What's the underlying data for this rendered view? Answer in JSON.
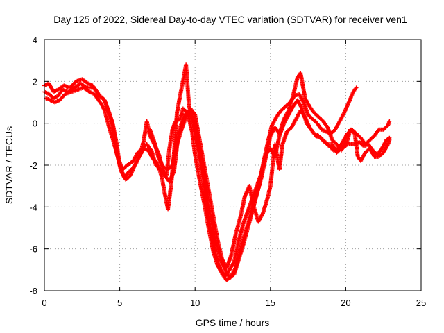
{
  "chart_data": {
    "type": "scatter",
    "title": "Day 125 of 2022, Sidereal Day-to-day VTEC variation (SDTVAR) for receiver ven1",
    "xlabel": "GPS time / hours",
    "ylabel": "SDTVAR / TECUs",
    "xlim": [
      0,
      25
    ],
    "ylim": [
      -8,
      4
    ],
    "xticks": [
      "0",
      "5",
      "10",
      "15",
      "20",
      "25"
    ],
    "yticks": [
      "-8",
      "-6",
      "-4",
      "-2",
      "0",
      "2",
      "4"
    ],
    "grid": true,
    "marker": "+",
    "color": "#ff0000",
    "series": [
      {
        "points": [
          [
            0.0,
            1.5
          ],
          [
            0.3,
            1.4
          ],
          [
            0.6,
            1.2
          ],
          [
            0.9,
            1.3
          ],
          [
            1.2,
            1.6
          ],
          [
            1.6,
            1.5
          ],
          [
            2.0,
            1.7
          ],
          [
            2.4,
            1.9
          ],
          [
            2.8,
            1.7
          ],
          [
            3.2,
            1.7
          ],
          [
            3.4,
            1.6
          ],
          [
            3.6,
            1.3
          ],
          [
            3.9,
            1.2
          ],
          [
            4.1,
            0.9
          ],
          [
            4.3,
            0.4
          ],
          [
            4.5,
            0.1
          ],
          [
            4.8,
            -1.0
          ],
          [
            5.0,
            -2.0
          ],
          [
            5.3,
            -2.6
          ],
          [
            5.5,
            -2.4
          ],
          [
            5.8,
            -2.2
          ],
          [
            6.1,
            -1.9
          ],
          [
            6.4,
            -1.4
          ],
          [
            6.6,
            -0.8
          ],
          [
            6.8,
            0.1
          ],
          [
            7.0,
            -0.6
          ],
          [
            7.3,
            -1.0
          ],
          [
            7.6,
            -1.5
          ],
          [
            7.9,
            -2.3
          ],
          [
            8.1,
            -2.5
          ],
          [
            8.3,
            -1.2
          ],
          [
            8.5,
            -0.3
          ],
          [
            8.7,
            0.1
          ],
          [
            9.0,
            0.2
          ],
          [
            9.2,
            0.7
          ],
          [
            9.5,
            0.5
          ],
          [
            9.8,
            -0.4
          ],
          [
            10.0,
            -1.5
          ],
          [
            10.3,
            -2.7
          ],
          [
            10.6,
            -3.8
          ],
          [
            10.9,
            -5.0
          ],
          [
            11.2,
            -6.1
          ],
          [
            11.5,
            -6.8
          ],
          [
            11.8,
            -7.2
          ],
          [
            12.1,
            -7.5
          ],
          [
            12.4,
            -7.3
          ],
          [
            12.7,
            -6.9
          ],
          [
            13.0,
            -6.0
          ],
          [
            13.3,
            -5.3
          ],
          [
            13.6,
            -4.6
          ],
          [
            13.9,
            -3.8
          ],
          [
            14.2,
            -3.1
          ],
          [
            14.5,
            -2.0
          ],
          [
            14.8,
            -1.0
          ],
          [
            15.1,
            -0.1
          ],
          [
            15.4,
            0.3
          ],
          [
            15.7,
            0.6
          ],
          [
            16.0,
            0.8
          ],
          [
            16.3,
            1.0
          ],
          [
            16.6,
            1.3
          ],
          [
            16.9,
            1.4
          ],
          [
            17.2,
            1.0
          ],
          [
            17.5,
            0.4
          ],
          [
            17.8,
            0.2
          ],
          [
            18.1,
            0.0
          ],
          [
            18.4,
            -0.3
          ],
          [
            18.7,
            -0.4
          ],
          [
            19.0,
            -0.5
          ],
          [
            19.3,
            -0.3
          ],
          [
            19.6,
            0.1
          ],
          [
            19.9,
            0.5
          ],
          [
            20.2,
            1.0
          ],
          [
            20.5,
            1.5
          ],
          [
            20.7,
            1.7
          ]
        ]
      },
      {
        "points": [
          [
            0.0,
            1.8
          ],
          [
            0.3,
            1.9
          ],
          [
            0.6,
            1.5
          ],
          [
            0.9,
            1.6
          ],
          [
            1.3,
            1.8
          ],
          [
            1.7,
            1.7
          ],
          [
            2.1,
            2.0
          ],
          [
            2.5,
            2.1
          ],
          [
            2.9,
            1.9
          ],
          [
            3.2,
            1.8
          ],
          [
            3.5,
            1.5
          ],
          [
            3.7,
            1.3
          ],
          [
            4.0,
            1.1
          ],
          [
            4.2,
            0.7
          ],
          [
            4.4,
            0.3
          ],
          [
            4.6,
            -0.4
          ],
          [
            4.8,
            -1.4
          ],
          [
            5.1,
            -2.3
          ],
          [
            5.4,
            -2.7
          ],
          [
            5.7,
            -2.5
          ],
          [
            6.0,
            -2.0
          ],
          [
            6.3,
            -1.6
          ],
          [
            6.6,
            -1.2
          ],
          [
            6.9,
            -1.3
          ],
          [
            7.2,
            -1.7
          ],
          [
            7.5,
            -1.9
          ],
          [
            7.8,
            -2.6
          ],
          [
            8.0,
            -3.4
          ],
          [
            8.2,
            -4.1
          ],
          [
            8.4,
            -3.0
          ],
          [
            8.6,
            -1.5
          ],
          [
            8.8,
            0.5
          ],
          [
            9.0,
            1.3
          ],
          [
            9.2,
            2.0
          ],
          [
            9.4,
            2.8
          ],
          [
            9.6,
            0.8
          ],
          [
            9.9,
            0.2
          ],
          [
            10.2,
            -1.0
          ],
          [
            10.5,
            -2.2
          ],
          [
            10.8,
            -3.6
          ],
          [
            11.1,
            -4.7
          ],
          [
            11.4,
            -5.7
          ],
          [
            11.7,
            -6.5
          ],
          [
            12.0,
            -7.0
          ],
          [
            12.3,
            -7.4
          ],
          [
            12.6,
            -7.2
          ],
          [
            12.9,
            -6.5
          ],
          [
            13.2,
            -5.8
          ],
          [
            13.5,
            -5.0
          ],
          [
            13.8,
            -4.2
          ],
          [
            14.1,
            -3.4
          ],
          [
            14.4,
            -2.6
          ],
          [
            14.7,
            -1.6
          ],
          [
            15.0,
            -0.6
          ],
          [
            15.3,
            -0.2
          ],
          [
            15.6,
            -0.5
          ],
          [
            15.9,
            0.2
          ],
          [
            16.2,
            0.6
          ],
          [
            16.5,
            1.3
          ],
          [
            16.8,
            2.2
          ],
          [
            17.0,
            2.4
          ],
          [
            17.3,
            1.2
          ],
          [
            17.6,
            0.8
          ],
          [
            17.9,
            0.5
          ],
          [
            18.2,
            0.3
          ],
          [
            18.5,
            0.1
          ],
          [
            18.8,
            -0.2
          ],
          [
            19.1,
            -0.8
          ],
          [
            19.4,
            -1.0
          ],
          [
            19.7,
            -1.3
          ],
          [
            20.0,
            -0.9
          ],
          [
            20.3,
            -1.0
          ],
          [
            20.6,
            -1.0
          ],
          [
            20.9,
            -0.9
          ],
          [
            21.2,
            -1.1
          ],
          [
            21.5,
            -1.0
          ],
          [
            21.8,
            -1.3
          ],
          [
            22.1,
            -1.5
          ],
          [
            22.4,
            -1.2
          ],
          [
            22.7,
            -0.8
          ],
          [
            22.9,
            -0.7
          ]
        ]
      },
      {
        "points": [
          [
            0.1,
            1.2
          ],
          [
            0.4,
            1.1
          ],
          [
            0.7,
            1.0
          ],
          [
            1.0,
            1.1
          ],
          [
            1.4,
            1.4
          ],
          [
            1.8,
            1.5
          ],
          [
            2.2,
            1.6
          ],
          [
            2.6,
            1.7
          ],
          [
            3.0,
            1.5
          ],
          [
            3.3,
            1.4
          ],
          [
            3.8,
            0.9
          ],
          [
            4.0,
            0.6
          ],
          [
            4.3,
            -0.2
          ],
          [
            4.6,
            -0.9
          ],
          [
            4.9,
            -1.7
          ],
          [
            5.2,
            -2.2
          ],
          [
            5.5,
            -2.0
          ],
          [
            5.9,
            -1.8
          ],
          [
            6.2,
            -1.4
          ],
          [
            6.5,
            -1.2
          ],
          [
            6.8,
            -1.0
          ],
          [
            7.1,
            -1.3
          ],
          [
            7.4,
            -2.0
          ],
          [
            7.7,
            -2.2
          ],
          [
            8.0,
            -2.5
          ],
          [
            8.3,
            -2.8
          ],
          [
            8.6,
            -2.3
          ],
          [
            8.9,
            -0.5
          ],
          [
            9.1,
            0.0
          ],
          [
            9.3,
            0.4
          ],
          [
            9.6,
            0.6
          ],
          [
            9.9,
            0.0
          ],
          [
            10.2,
            -1.2
          ],
          [
            10.5,
            -2.5
          ],
          [
            10.8,
            -4.0
          ],
          [
            11.1,
            -5.3
          ],
          [
            11.4,
            -6.3
          ],
          [
            11.7,
            -7.0
          ],
          [
            12.0,
            -7.3
          ],
          [
            12.3,
            -7.0
          ],
          [
            12.6,
            -6.6
          ],
          [
            12.9,
            -5.6
          ],
          [
            13.2,
            -4.8
          ],
          [
            13.5,
            -4.2
          ],
          [
            13.8,
            -3.6
          ],
          [
            14.1,
            -3.0
          ],
          [
            14.4,
            -2.4
          ],
          [
            14.7,
            -1.5
          ],
          [
            15.0,
            -1.2
          ],
          [
            15.3,
            -1.6
          ],
          [
            15.6,
            -0.6
          ],
          [
            15.9,
            0.0
          ],
          [
            16.2,
            0.4
          ],
          [
            16.5,
            0.8
          ],
          [
            16.8,
            1.1
          ],
          [
            17.1,
            0.7
          ],
          [
            17.4,
            0.0
          ],
          [
            17.7,
            -0.3
          ],
          [
            18.0,
            -0.6
          ],
          [
            18.3,
            -0.7
          ],
          [
            18.6,
            -0.9
          ],
          [
            18.9,
            -1.1
          ],
          [
            19.2,
            -1.3
          ],
          [
            19.5,
            -1.2
          ],
          [
            19.8,
            -0.9
          ],
          [
            20.1,
            -0.5
          ],
          [
            20.4,
            -0.3
          ],
          [
            20.7,
            -0.5
          ],
          [
            21.0,
            -0.7
          ],
          [
            21.3,
            -1.0
          ],
          [
            21.6,
            -0.8
          ],
          [
            21.9,
            -0.6
          ],
          [
            22.2,
            -0.3
          ],
          [
            22.5,
            -0.3
          ],
          [
            22.8,
            -0.1
          ],
          [
            22.9,
            0.1
          ]
        ]
      },
      {
        "points": [
          [
            7.0,
            -0.3
          ],
          [
            7.3,
            -0.9
          ],
          [
            7.6,
            -1.7
          ],
          [
            7.9,
            -2.1
          ],
          [
            8.2,
            -2.2
          ],
          [
            8.5,
            -2.0
          ],
          [
            8.8,
            -1.0
          ],
          [
            9.1,
            -0.3
          ],
          [
            9.4,
            0.3
          ],
          [
            9.7,
            0.7
          ],
          [
            10.0,
            0.4
          ],
          [
            10.3,
            -0.8
          ],
          [
            10.6,
            -2.0
          ],
          [
            10.9,
            -3.2
          ],
          [
            11.2,
            -4.4
          ],
          [
            11.5,
            -5.6
          ],
          [
            11.8,
            -6.5
          ],
          [
            12.1,
            -6.9
          ],
          [
            12.4,
            -6.3
          ],
          [
            12.7,
            -5.3
          ],
          [
            13.0,
            -4.5
          ],
          [
            13.3,
            -3.5
          ],
          [
            13.6,
            -3.0
          ],
          [
            13.9,
            -4.0
          ],
          [
            14.2,
            -4.7
          ],
          [
            14.5,
            -4.3
          ],
          [
            14.8,
            -3.6
          ],
          [
            15.0,
            -3.0
          ],
          [
            15.3,
            -1.0
          ],
          [
            15.6,
            -2.2
          ],
          [
            15.8,
            -1.0
          ],
          [
            16.1,
            -0.4
          ],
          [
            16.4,
            -0.2
          ],
          [
            16.7,
            0.2
          ],
          [
            17.0,
            0.6
          ],
          [
            17.3,
            0.3
          ],
          [
            17.6,
            -0.2
          ],
          [
            17.9,
            -0.5
          ],
          [
            18.2,
            -0.6
          ],
          [
            18.5,
            -0.8
          ],
          [
            18.8,
            -1.0
          ],
          [
            19.1,
            -1.0
          ],
          [
            19.4,
            -1.4
          ],
          [
            19.7,
            -1.2
          ],
          [
            20.0,
            -1.1
          ],
          [
            20.3,
            -0.3
          ],
          [
            20.6,
            -0.5
          ],
          [
            20.8,
            -1.6
          ],
          [
            21.0,
            -1.8
          ],
          [
            21.3,
            -1.4
          ],
          [
            21.6,
            -1.2
          ],
          [
            21.9,
            -1.6
          ],
          [
            22.2,
            -1.6
          ],
          [
            22.5,
            -1.4
          ],
          [
            22.8,
            -1.0
          ],
          [
            22.9,
            -0.8
          ]
        ]
      }
    ]
  }
}
